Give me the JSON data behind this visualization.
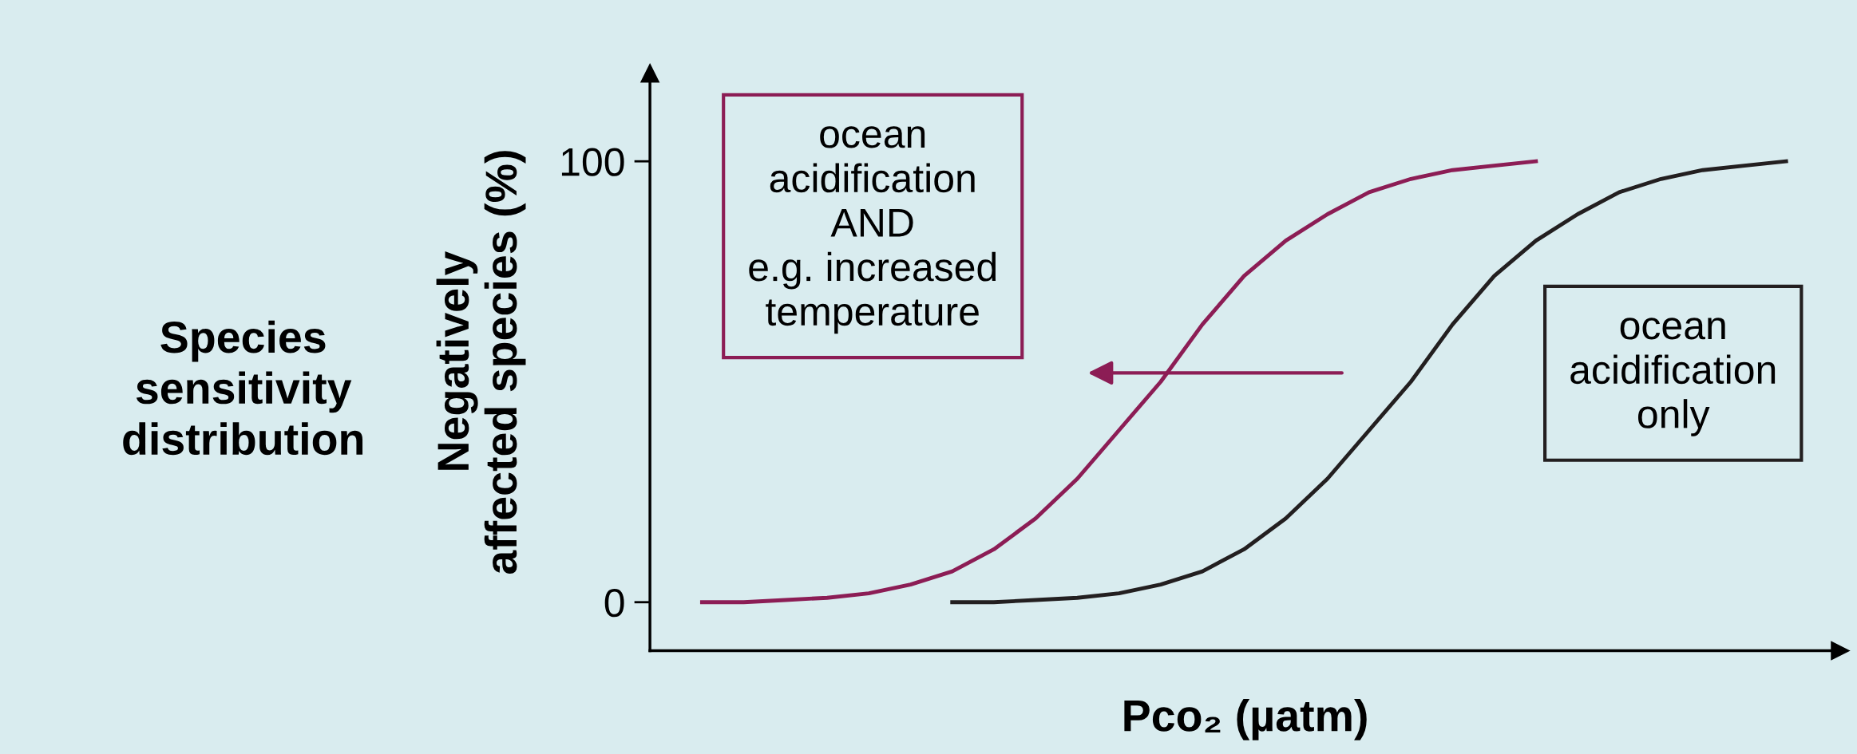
{
  "chart_data": {
    "type": "line",
    "xlabel": "Pco₂ (µatm)",
    "ylabel": "Negatively\naffected species (%)",
    "categories": [
      null,
      null,
      null,
      null,
      null,
      null,
      null,
      null,
      null,
      null,
      null,
      null,
      null,
      null,
      null,
      null,
      null,
      null,
      null,
      null,
      null,
      null,
      null,
      null,
      null,
      null,
      null
    ],
    "series": [
      {
        "color": "#8c1d55",
        "values": [
          0,
          0,
          0.5,
          1,
          2,
          4,
          7,
          12,
          19,
          28,
          39,
          50,
          63,
          74,
          82,
          88,
          93,
          96,
          98,
          99,
          100,
          null,
          null,
          null,
          null,
          null,
          null
        ]
      },
      {
        "color": "#231f20",
        "values": [
          null,
          null,
          null,
          null,
          null,
          null,
          0,
          0,
          0.5,
          1,
          2,
          4,
          7,
          12,
          19,
          28,
          39,
          50,
          63,
          74,
          82,
          88,
          93,
          96,
          98,
          99,
          100
        ]
      }
    ],
    "ylim": [
      -11,
      120
    ],
    "yticks": [
      0,
      100
    ],
    "grid": false,
    "annotations": [
      "Species\nsensitivity\ndistribution",
      "ocean\nacidification\nAND\ne.g. increased\ntemperature",
      "ocean\nacidification\nonly"
    ]
  }
}
